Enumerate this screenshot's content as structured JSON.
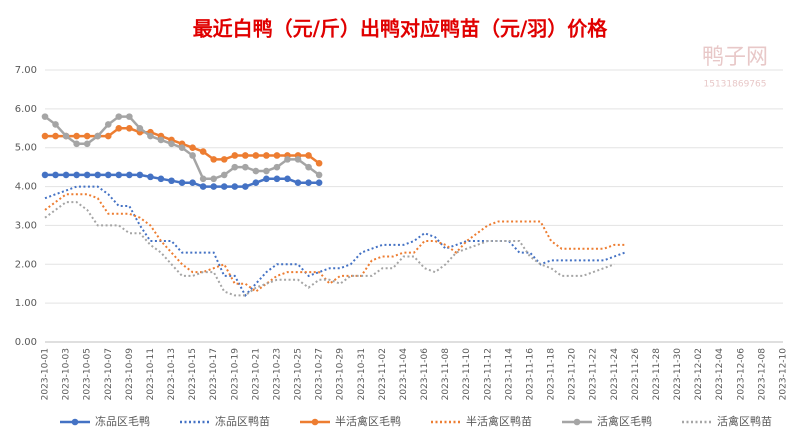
{
  "chart_data": {
    "type": "line",
    "title": "最近白鸭（元/斤）出鸭对应鸭苗（元/羽）价格",
    "watermark": [
      "鸭子网",
      "15131869765"
    ],
    "categories": [
      "2023-10-01",
      null,
      "2023-10-03",
      null,
      "2023-10-05",
      null,
      "2023-10-07",
      null,
      "2023-10-09",
      null,
      "2023-10-11",
      null,
      "2023-10-13",
      null,
      "2023-10-15",
      null,
      "2023-10-17",
      null,
      "2023-10-19",
      null,
      "2023-10-21",
      null,
      "2023-10-23",
      null,
      "2023-10-25",
      null,
      "2023-10-27",
      null,
      "2023-10-29",
      null,
      "2023-10-31",
      null,
      "2023-11-02",
      null,
      "2023-11-04",
      null,
      "2023-11-06",
      null,
      "2023-11-08",
      null,
      "2023-11-10",
      null,
      "2023-11-12",
      null,
      "2023-11-14",
      null,
      "2023-11-16",
      null,
      "2023-11-18",
      null,
      "2023-11-20",
      null,
      "2023-11-22",
      null,
      "2023-11-24",
      null,
      "2023-11-26",
      null,
      "2023-11-28",
      null,
      "2023-11-30",
      null,
      "2023-12-02",
      null,
      "2023-12-04",
      null,
      "2023-12-06",
      null,
      "2023-12-08",
      null,
      "2023-12-10"
    ],
    "series": [
      {
        "name": "冻品区毛鸭",
        "color": "#4472c4",
        "style": "solid",
        "marker": true,
        "values": [
          4.3,
          4.3,
          4.3,
          4.3,
          4.3,
          4.3,
          4.3,
          4.3,
          4.3,
          4.3,
          4.25,
          4.2,
          4.15,
          4.1,
          4.1,
          4.0,
          4.0,
          4.0,
          4.0,
          4.0,
          4.1,
          4.2,
          4.2,
          4.2,
          4.1,
          4.1,
          4.1,
          null,
          null,
          null,
          null,
          null,
          null,
          null,
          null,
          null,
          null,
          null,
          null,
          null,
          null,
          null,
          null,
          null,
          null,
          null,
          null,
          null,
          null,
          null,
          null,
          null,
          null,
          null,
          null,
          null,
          null,
          null,
          null,
          null,
          null,
          null,
          null,
          null,
          null,
          null,
          null,
          null,
          null,
          null,
          null
        ]
      },
      {
        "name": "冻品区鸭苗",
        "color": "#4472c4",
        "style": "dotted",
        "marker": false,
        "values": [
          3.7,
          3.8,
          3.9,
          4.0,
          4.0,
          4.0,
          3.8,
          3.5,
          3.5,
          3.0,
          2.6,
          2.6,
          2.6,
          2.3,
          2.3,
          2.3,
          2.3,
          1.7,
          1.7,
          1.2,
          1.5,
          1.8,
          2.0,
          2.0,
          2.0,
          1.7,
          1.8,
          1.9,
          1.9,
          2.0,
          2.3,
          2.4,
          2.5,
          2.5,
          2.5,
          2.6,
          2.8,
          2.7,
          2.4,
          2.5,
          2.6,
          2.6,
          2.6,
          2.6,
          2.6,
          2.3,
          2.3,
          2.0,
          2.1,
          2.1,
          2.1,
          2.1,
          2.1,
          2.1,
          2.2,
          2.3,
          null,
          null,
          null,
          null,
          null,
          null,
          null,
          null,
          null,
          null,
          null,
          null,
          null,
          null,
          null
        ]
      },
      {
        "name": "半活禽区毛鸭",
        "color": "#ed7d31",
        "style": "solid",
        "marker": true,
        "values": [
          5.3,
          5.3,
          5.3,
          5.3,
          5.3,
          5.3,
          5.3,
          5.5,
          5.5,
          5.4,
          5.4,
          5.3,
          5.2,
          5.1,
          5.0,
          4.9,
          4.7,
          4.7,
          4.8,
          4.8,
          4.8,
          4.8,
          4.8,
          4.8,
          4.8,
          4.8,
          4.6,
          null,
          null,
          null,
          null,
          null,
          null,
          null,
          null,
          null,
          null,
          null,
          null,
          null,
          null,
          null,
          null,
          null,
          null,
          null,
          null,
          null,
          null,
          null,
          null,
          null,
          null,
          null,
          null,
          null,
          null,
          null,
          null,
          null,
          null,
          null,
          null,
          null,
          null,
          null,
          null,
          null,
          null,
          null,
          null
        ]
      },
      {
        "name": "半活禽区鸭苗",
        "color": "#ed7d31",
        "style": "dotted",
        "marker": false,
        "values": [
          3.4,
          3.6,
          3.8,
          3.8,
          3.8,
          3.7,
          3.3,
          3.3,
          3.3,
          3.2,
          3.0,
          2.6,
          2.3,
          2.0,
          1.8,
          1.8,
          1.9,
          2.0,
          1.5,
          1.5,
          1.3,
          1.5,
          1.7,
          1.8,
          1.8,
          1.8,
          1.8,
          1.5,
          1.7,
          1.7,
          1.7,
          2.1,
          2.2,
          2.2,
          2.3,
          2.3,
          2.6,
          2.6,
          2.5,
          2.3,
          2.6,
          2.8,
          3.0,
          3.1,
          3.1,
          3.1,
          3.1,
          3.1,
          2.6,
          2.4,
          2.4,
          2.4,
          2.4,
          2.4,
          2.5,
          2.5,
          null,
          null,
          null,
          null,
          null,
          null,
          null,
          null,
          null,
          null,
          null,
          null,
          null,
          null,
          null
        ]
      },
      {
        "name": "活禽区毛鸭",
        "color": "#a5a5a5",
        "style": "solid",
        "marker": true,
        "values": [
          5.8,
          5.6,
          5.3,
          5.1,
          5.1,
          5.3,
          5.6,
          5.8,
          5.8,
          5.5,
          5.3,
          5.2,
          5.1,
          5.0,
          4.8,
          4.2,
          4.2,
          4.3,
          4.5,
          4.5,
          4.4,
          4.4,
          4.5,
          4.7,
          4.7,
          4.5,
          4.3,
          null,
          null,
          null,
          null,
          null,
          null,
          null,
          null,
          null,
          null,
          null,
          null,
          null,
          null,
          null,
          null,
          null,
          null,
          null,
          null,
          null,
          null,
          null,
          null,
          null,
          null,
          null,
          null,
          null,
          null,
          null,
          null,
          null,
          null,
          null,
          null,
          null,
          null,
          null,
          null,
          null,
          null,
          null,
          null
        ]
      },
      {
        "name": "活禽区鸭苗",
        "color": "#a5a5a5",
        "style": "dotted",
        "marker": false,
        "values": [
          3.2,
          3.4,
          3.6,
          3.6,
          3.4,
          3.0,
          3.0,
          3.0,
          2.8,
          2.8,
          2.5,
          2.3,
          2.0,
          1.7,
          1.7,
          1.8,
          1.8,
          1.3,
          1.2,
          1.2,
          1.4,
          1.5,
          1.6,
          1.6,
          1.6,
          1.4,
          1.6,
          1.6,
          1.5,
          1.7,
          1.7,
          1.7,
          1.9,
          1.9,
          2.2,
          2.2,
          1.9,
          1.8,
          2.0,
          2.3,
          2.4,
          2.5,
          2.6,
          2.6,
          2.6,
          2.6,
          2.2,
          2.0,
          1.9,
          1.7,
          1.7,
          1.7,
          1.8,
          1.9,
          2.0,
          null,
          null,
          null,
          null,
          null,
          null,
          null,
          null,
          null,
          null,
          null,
          null,
          null,
          null,
          null,
          null
        ]
      }
    ],
    "ylim": [
      0,
      7
    ],
    "yticks": [
      {
        "value": 0,
        "label": "0.00"
      },
      {
        "value": 1,
        "label": "1.00"
      },
      {
        "value": 2,
        "label": "2.00"
      },
      {
        "value": 3,
        "label": "3.00"
      },
      {
        "value": 4,
        "label": "4.00"
      },
      {
        "value": 5,
        "label": "5.00"
      },
      {
        "value": 6,
        "label": "6.00"
      },
      {
        "value": 7,
        "label": "7.00"
      }
    ],
    "grid": true,
    "legend": "bottom"
  }
}
